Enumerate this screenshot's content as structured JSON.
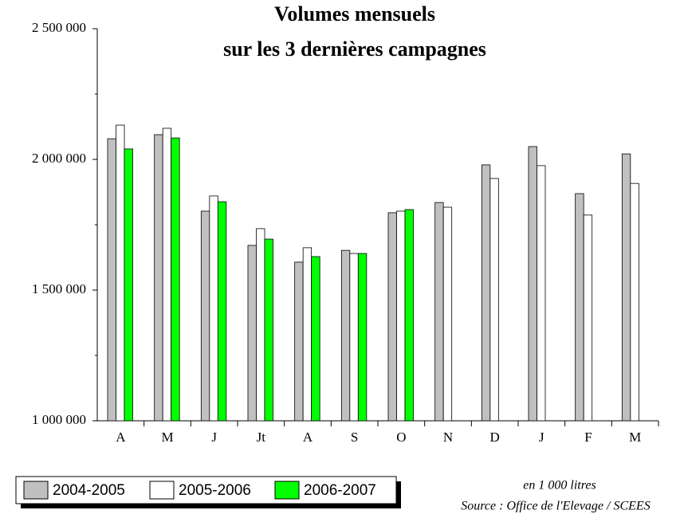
{
  "chart_data": {
    "type": "bar",
    "title": [
      "Volumes mensuels",
      "sur les 3 dernières campagnes"
    ],
    "categories": [
      "A",
      "M",
      "J",
      "Jt",
      "A",
      "S",
      "O",
      "N",
      "D",
      "J",
      "F",
      "M"
    ],
    "series": [
      {
        "name": "2004-2005",
        "color": "#c0c0c0",
        "values": [
          2079000,
          2094500,
          1802000,
          1671000,
          1607000,
          1652000,
          1796000,
          1835000,
          1979000,
          2049000,
          1869000,
          2021000
        ]
      },
      {
        "name": "2005-2006",
        "color": "#ffffff",
        "values": [
          2131000,
          2119000,
          1860000,
          1735000,
          1662000,
          1640000,
          1802000,
          1817000,
          1927000,
          1976000,
          1787000,
          1908000
        ]
      },
      {
        "name": "2006-2007",
        "color": "#00ff00",
        "values": [
          2040000,
          2082000,
          1838000,
          1695000,
          1628000,
          1640000,
          1808000,
          null,
          null,
          null,
          null,
          null
        ]
      }
    ],
    "ylim": [
      1000000,
      2500000
    ],
    "yticks": [
      {
        "value": 1000000,
        "label": "1 000 000"
      },
      {
        "value": 1500000,
        "label": "1 500 000"
      },
      {
        "value": 2000000,
        "label": "2 000 000"
      },
      {
        "value": 2500000,
        "label": "2 500 000"
      }
    ],
    "minor_yticks": [
      1250000,
      1750000,
      2250000
    ],
    "notes": [
      "en 1 000 litres",
      "Source : Office de l'Elevage / SCEES"
    ]
  }
}
